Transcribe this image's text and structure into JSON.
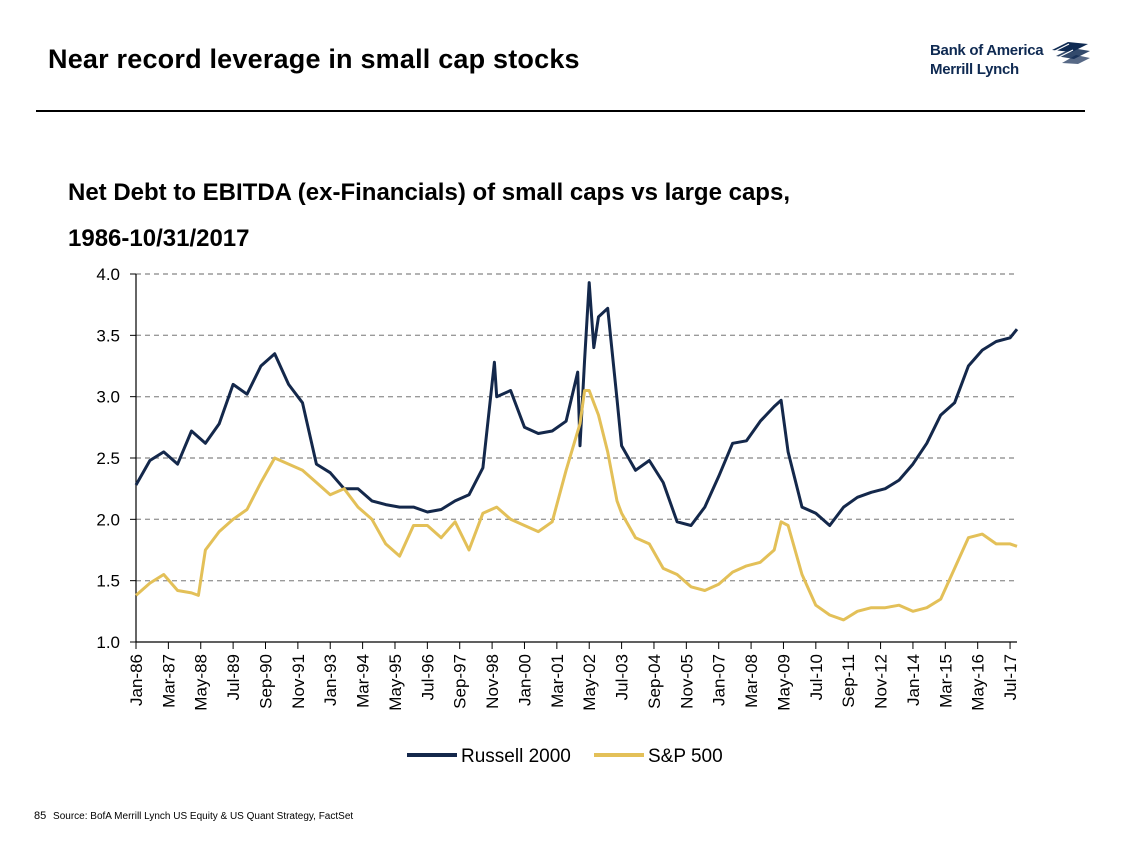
{
  "slide": {
    "title": "Near record leverage in small cap stocks",
    "logo_line1": "Bank of America",
    "logo_line2": "Merrill Lynch",
    "page_number": "85",
    "source": "Source: BofA Merrill Lynch US Equity & US Quant Strategy, FactSet"
  },
  "colors": {
    "russell": "#14284b",
    "sp500": "#e3c058",
    "brand": "#0f2a52",
    "grid": "#9a9a9a"
  },
  "chart_data": {
    "type": "line",
    "title_line1": "Net Debt to EBITDA (ex-Financials) of small caps vs large caps,",
    "title_line2": "1986-10/31/2017",
    "xlabel": "",
    "ylabel": "",
    "ylim": [
      1.0,
      4.0
    ],
    "yticks": [
      "1.0",
      "1.5",
      "2.0",
      "2.5",
      "3.0",
      "3.5",
      "4.0"
    ],
    "xticks": [
      "Jan-86",
      "Mar-87",
      "May-88",
      "Jul-89",
      "Sep-90",
      "Nov-91",
      "Jan-93",
      "Mar-94",
      "May-95",
      "Jul-96",
      "Sep-97",
      "Nov-98",
      "Jan-00",
      "Mar-01",
      "May-02",
      "Jul-03",
      "Sep-04",
      "Nov-05",
      "Jan-07",
      "Mar-08",
      "May-09",
      "Jul-10",
      "Sep-11",
      "Nov-12",
      "Jan-14",
      "Mar-15",
      "May-16",
      "Jul-17"
    ],
    "grid": "horizontal dashed",
    "legend_position": "bottom",
    "series": [
      {
        "name": "Russell 2000",
        "x": [
          "1986-01",
          "1986-07",
          "1987-01",
          "1987-07",
          "1988-01",
          "1988-07",
          "1989-01",
          "1989-07",
          "1990-01",
          "1990-07",
          "1991-01",
          "1991-07",
          "1992-01",
          "1992-07",
          "1993-01",
          "1993-07",
          "1994-01",
          "1994-07",
          "1995-01",
          "1995-07",
          "1996-01",
          "1996-07",
          "1997-01",
          "1997-07",
          "1998-01",
          "1998-07",
          "1998-12",
          "1999-01",
          "1999-07",
          "2000-01",
          "2000-07",
          "2001-01",
          "2001-07",
          "2001-12",
          "2002-01",
          "2002-03",
          "2002-05",
          "2002-07",
          "2002-09",
          "2003-01",
          "2003-05",
          "2003-07",
          "2004-01",
          "2004-07",
          "2005-01",
          "2005-07",
          "2006-01",
          "2006-07",
          "2007-01",
          "2007-07",
          "2008-01",
          "2008-07",
          "2009-01",
          "2009-04",
          "2009-07",
          "2010-01",
          "2010-07",
          "2011-01",
          "2011-07",
          "2012-01",
          "2012-07",
          "2013-01",
          "2013-07",
          "2014-01",
          "2014-07",
          "2015-01",
          "2015-07",
          "2016-01",
          "2016-07",
          "2017-01",
          "2017-07",
          "2017-10"
        ],
        "values": [
          2.28,
          2.48,
          2.55,
          2.45,
          2.72,
          2.62,
          2.78,
          3.1,
          3.02,
          3.25,
          3.35,
          3.1,
          2.95,
          2.45,
          2.38,
          2.25,
          2.25,
          2.15,
          2.12,
          2.1,
          2.1,
          2.06,
          2.08,
          2.15,
          2.2,
          2.42,
          3.28,
          3.0,
          3.05,
          2.75,
          2.7,
          2.72,
          2.8,
          3.2,
          2.6,
          3.3,
          3.93,
          3.4,
          3.65,
          3.72,
          2.98,
          2.6,
          2.4,
          2.48,
          2.3,
          1.98,
          1.95,
          2.1,
          2.35,
          2.62,
          2.64,
          2.8,
          2.92,
          2.97,
          2.55,
          2.1,
          2.05,
          1.95,
          2.1,
          2.18,
          2.22,
          2.25,
          2.32,
          2.45,
          2.62,
          2.85,
          2.95,
          3.25,
          3.38,
          3.45,
          3.48,
          3.55
        ]
      },
      {
        "name": "S&P 500",
        "x": [
          "1986-01",
          "1986-07",
          "1987-01",
          "1987-07",
          "1988-01",
          "1988-04",
          "1988-07",
          "1989-01",
          "1989-07",
          "1990-01",
          "1990-07",
          "1991-01",
          "1991-07",
          "1992-01",
          "1992-07",
          "1993-01",
          "1993-07",
          "1994-01",
          "1994-07",
          "1995-01",
          "1995-07",
          "1996-01",
          "1996-07",
          "1997-01",
          "1997-07",
          "1998-01",
          "1998-07",
          "1999-01",
          "1999-07",
          "2000-01",
          "2000-07",
          "2001-01",
          "2001-07",
          "2002-01",
          "2002-03",
          "2002-05",
          "2002-07",
          "2002-09",
          "2003-01",
          "2003-05",
          "2003-07",
          "2004-01",
          "2004-07",
          "2005-01",
          "2005-07",
          "2006-01",
          "2006-07",
          "2007-01",
          "2007-07",
          "2008-01",
          "2008-07",
          "2009-01",
          "2009-04",
          "2009-07",
          "2010-01",
          "2010-07",
          "2011-01",
          "2011-07",
          "2012-01",
          "2012-07",
          "2013-01",
          "2013-07",
          "2014-01",
          "2014-07",
          "2015-01",
          "2015-07",
          "2016-01",
          "2016-07",
          "2017-01",
          "2017-07",
          "2017-10"
        ],
        "values": [
          1.38,
          1.48,
          1.55,
          1.42,
          1.4,
          1.38,
          1.75,
          1.9,
          2.0,
          2.08,
          2.3,
          2.5,
          2.45,
          2.4,
          2.3,
          2.2,
          2.25,
          2.1,
          2.0,
          1.8,
          1.7,
          1.95,
          1.95,
          1.85,
          1.98,
          1.75,
          2.05,
          2.1,
          2.0,
          1.95,
          1.9,
          1.98,
          2.4,
          2.78,
          3.05,
          3.05,
          2.95,
          2.85,
          2.55,
          2.15,
          2.05,
          1.85,
          1.8,
          1.6,
          1.55,
          1.45,
          1.42,
          1.47,
          1.57,
          1.62,
          1.65,
          1.75,
          1.98,
          1.95,
          1.55,
          1.3,
          1.22,
          1.18,
          1.25,
          1.28,
          1.28,
          1.3,
          1.25,
          1.28,
          1.35,
          1.6,
          1.85,
          1.88,
          1.8,
          1.8,
          1.78
        ]
      }
    ]
  }
}
